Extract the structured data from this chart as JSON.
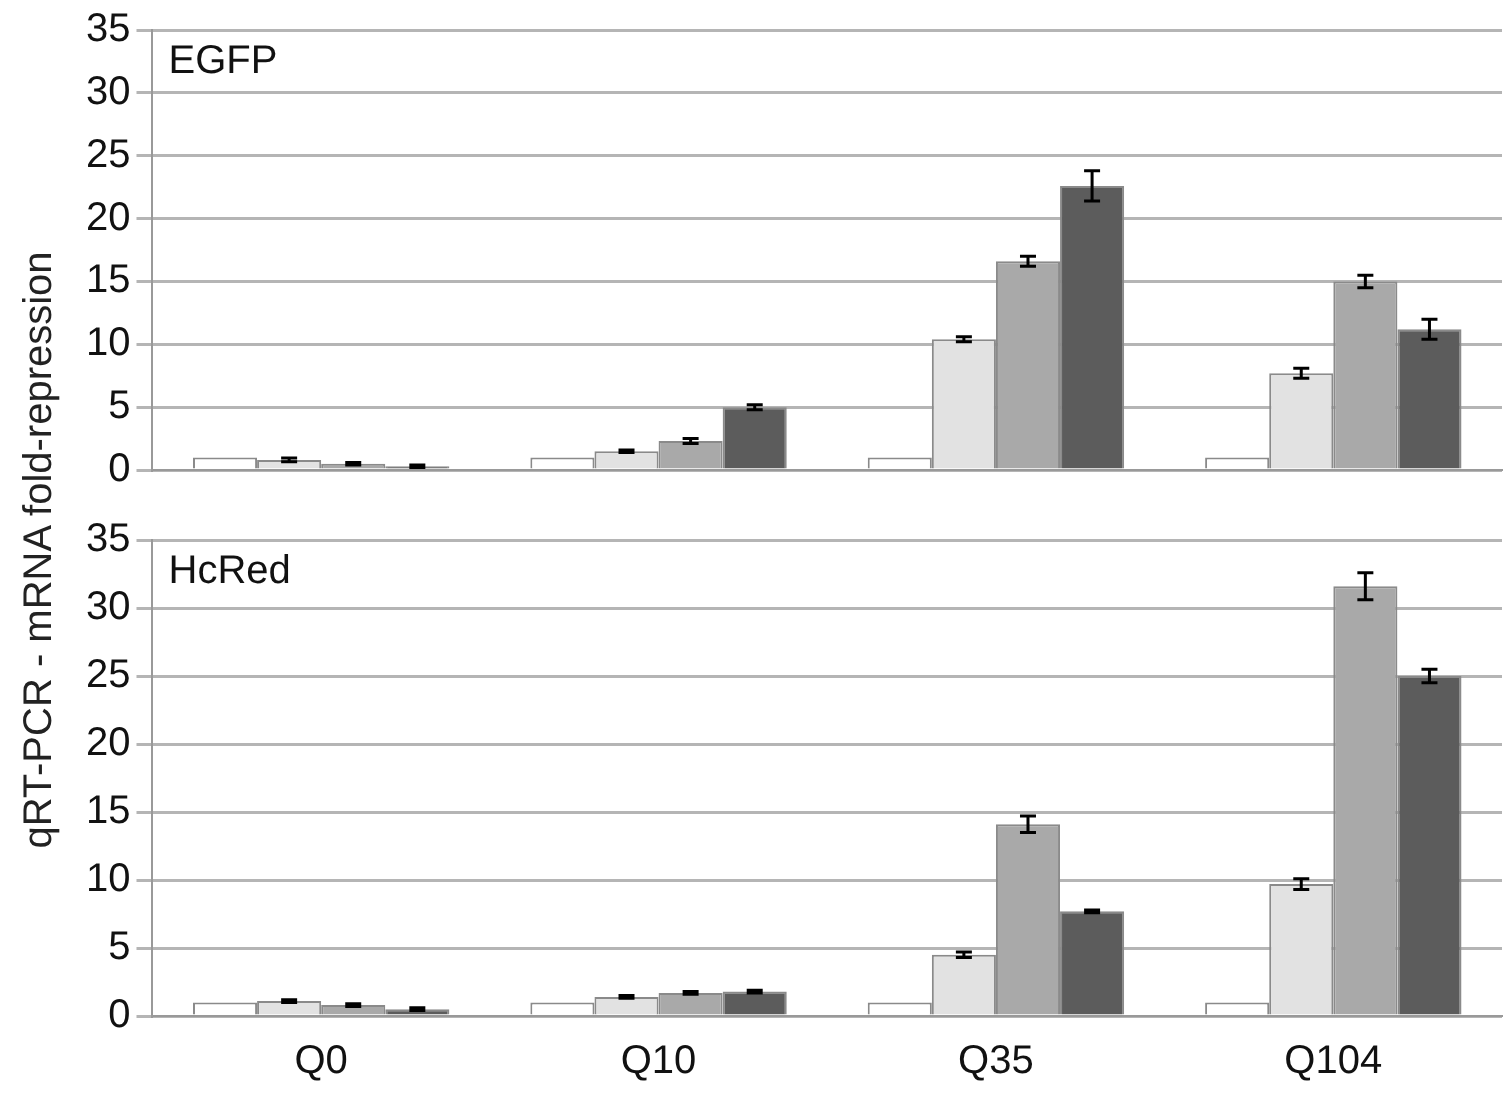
{
  "chart_data": [
    {
      "type": "bar",
      "ylabel": "qRT-PCR - mRNA fold-repression",
      "annotations": [
        "EGFP"
      ],
      "categories": [
        null,
        null,
        null,
        null
      ],
      "ylim": [
        0,
        35
      ],
      "yticks": [
        0,
        5,
        10,
        15,
        20,
        25,
        30,
        35
      ],
      "grid": "y",
      "legend": false,
      "tick_labels": "y",
      "series": [
        {
          "color": "#ffffff",
          "values": [
            1,
            1,
            1,
            1
          ]
        },
        {
          "color": "#e2e2e2",
          "values": [
            0.8,
            1.5,
            10.4,
            7.7
          ],
          "errors": [
            0.15,
            0.1,
            0.2,
            0.4
          ]
        },
        {
          "color": "#a9a9a9",
          "values": [
            0.5,
            2.3,
            16.6,
            15
          ],
          "errors": [
            0.1,
            0.2,
            0.4,
            0.5
          ]
        },
        {
          "color": "#5c5c5c",
          "values": [
            0.3,
            5,
            22.6,
            11.2
          ],
          "errors": [
            0.1,
            0.2,
            1.2,
            0.8
          ]
        }
      ]
    },
    {
      "type": "bar",
      "annotations": [
        "HcRed"
      ],
      "categories": [
        "Q0",
        "Q10",
        "Q35",
        "Q104"
      ],
      "ylim": [
        0,
        35
      ],
      "yticks": [
        0,
        5,
        10,
        15,
        20,
        25,
        30,
        35
      ],
      "grid": "y",
      "legend": false,
      "series": [
        {
          "color": "#ffffff",
          "values": [
            1,
            1,
            1,
            1
          ]
        },
        {
          "color": "#e2e2e2",
          "values": [
            1.1,
            1.4,
            4.5,
            9.7
          ],
          "errors": [
            0.1,
            0.1,
            0.2,
            0.4
          ]
        },
        {
          "color": "#a9a9a9",
          "values": [
            0.8,
            1.7,
            14.1,
            31.6
          ],
          "errors": [
            0.1,
            0.1,
            0.6,
            1
          ]
        },
        {
          "color": "#5c5c5c",
          "values": [
            0.5,
            1.8,
            7.7,
            25
          ],
          "errors": [
            0.1,
            0.1,
            0.1,
            0.5
          ]
        }
      ]
    }
  ]
}
